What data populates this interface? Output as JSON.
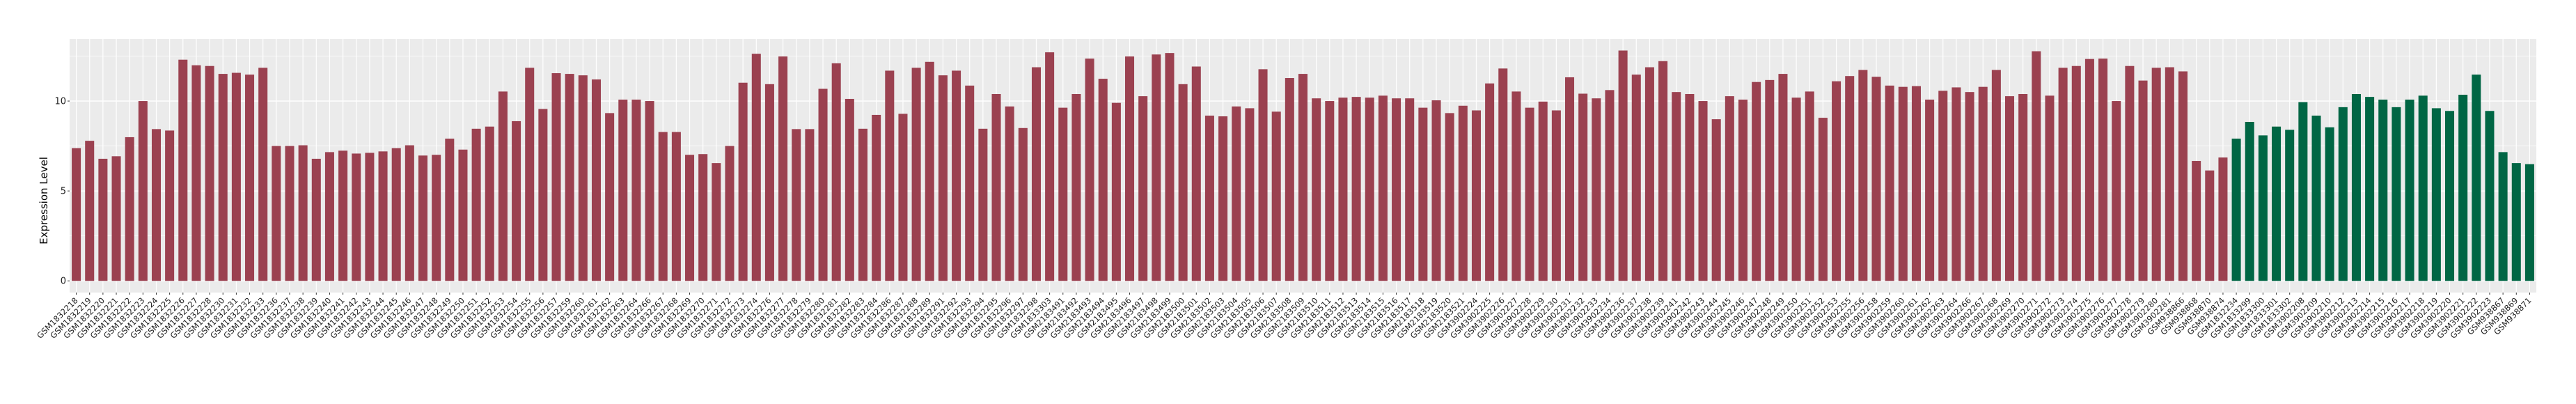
{
  "chart_data": {
    "type": "bar",
    "title": "",
    "xlabel": "",
    "ylabel": "Expression Level",
    "ylim": [
      -0.65,
      13.45
    ],
    "yticks": [
      0,
      5,
      10
    ],
    "grid": true,
    "legend": "none",
    "series": [
      {
        "color": "#9B4150",
        "categories": [
          "GSM1832218",
          "GSM1832219",
          "GSM1832220",
          "GSM1832221",
          "GSM1832222",
          "GSM1832223",
          "GSM1832224",
          "GSM1832225",
          "GSM1832226",
          "GSM1832227",
          "GSM1832228",
          "GSM1832230",
          "GSM1832231",
          "GSM1832232",
          "GSM1832233",
          "GSM1832236",
          "GSM1832237",
          "GSM1832238",
          "GSM1832239",
          "GSM1832240",
          "GSM1832241",
          "GSM1832242",
          "GSM1832243",
          "GSM1832244",
          "GSM1832245",
          "GSM1832246",
          "GSM1832247",
          "GSM1832248",
          "GSM1832249",
          "GSM1832250",
          "GSM1832251",
          "GSM1832252",
          "GSM1832253",
          "GSM1832254",
          "GSM1832255",
          "GSM1832256",
          "GSM1832257",
          "GSM1832259",
          "GSM1832260",
          "GSM1832261",
          "GSM1832262",
          "GSM1832263",
          "GSM1832264",
          "GSM1832266",
          "GSM1832267",
          "GSM1832268",
          "GSM1832269",
          "GSM1832270",
          "GSM1832271",
          "GSM1832272",
          "GSM1832273",
          "GSM1832274",
          "GSM1832276",
          "GSM1832277",
          "GSM1832278",
          "GSM1832279",
          "GSM1832280",
          "GSM1832281",
          "GSM1832282",
          "GSM1832283",
          "GSM1832284",
          "GSM1832286",
          "GSM1832287",
          "GSM1832288",
          "GSM1832289",
          "GSM1832291",
          "GSM1832292",
          "GSM1832293",
          "GSM1832294",
          "GSM1832295",
          "GSM1832296",
          "GSM1832297",
          "GSM1832298",
          "GSM1833303",
          "GSM2183491",
          "GSM2183492",
          "GSM2183493",
          "GSM2183494",
          "GSM2183495",
          "GSM2183496",
          "GSM2183497",
          "GSM2183498",
          "GSM2183499",
          "GSM2183500",
          "GSM2183501",
          "GSM2183502",
          "GSM2183503",
          "GSM2183504",
          "GSM2183505",
          "GSM2183506",
          "GSM2183507",
          "GSM2183508",
          "GSM2183509",
          "GSM2183510",
          "GSM2183511",
          "GSM2183512",
          "GSM2183513",
          "GSM2183514",
          "GSM2183515",
          "GSM2183516",
          "GSM2183517",
          "GSM2183518",
          "GSM2183519",
          "GSM2183520",
          "GSM2183521",
          "GSM3902224",
          "GSM3902225",
          "GSM3902226",
          "GSM3902227",
          "GSM3902228",
          "GSM3902229",
          "GSM3902230",
          "GSM3902231",
          "GSM3902232",
          "GSM3902233",
          "GSM3902234",
          "GSM3902236",
          "GSM3902237",
          "GSM3902238",
          "GSM3902239",
          "GSM3902241",
          "GSM3902242",
          "GSM3902243",
          "GSM3902244",
          "GSM3902245",
          "GSM3902246",
          "GSM3902247",
          "GSM3902248",
          "GSM3902249",
          "GSM3902250",
          "GSM3902251",
          "GSM3902252",
          "GSM3902253",
          "GSM3902255",
          "GSM3902256",
          "GSM3902258",
          "GSM3902259",
          "GSM3902260",
          "GSM3902261",
          "GSM3902262",
          "GSM3902263",
          "GSM3902264",
          "GSM3902266",
          "GSM3902267",
          "GSM3902268",
          "GSM3902269",
          "GSM3902270",
          "GSM3902271",
          "GSM3902272",
          "GSM3902273",
          "GSM3902274",
          "GSM3902275",
          "GSM3902276",
          "GSM3902277",
          "GSM3902278",
          "GSM3902279",
          "GSM3902280",
          "GSM3902281",
          "GSM938866",
          "GSM938868",
          "GSM938870",
          "GSM938874"
        ],
        "values": [
          7.38,
          7.79,
          6.79,
          6.93,
          7.99,
          10.0,
          8.44,
          8.36,
          12.3,
          11.99,
          11.95,
          11.51,
          11.57,
          11.47,
          11.85,
          7.5,
          7.5,
          7.54,
          6.79,
          7.16,
          7.24,
          7.08,
          7.12,
          7.2,
          7.38,
          7.54,
          6.97,
          7.01,
          7.91,
          7.3,
          8.46,
          8.58,
          10.53,
          8.88,
          11.85,
          9.56,
          11.55,
          11.51,
          11.43,
          11.2,
          9.33,
          10.08,
          10.08,
          10.0,
          8.28,
          8.28,
          7.01,
          7.05,
          6.55,
          7.5,
          11.02,
          12.63,
          10.94,
          12.48,
          8.44,
          8.44,
          10.68,
          12.1,
          10.12,
          8.46,
          9.23,
          11.69,
          9.29,
          11.85,
          12.18,
          11.43,
          11.69,
          10.86,
          8.46,
          10.39,
          9.7,
          8.5,
          11.88,
          12.71,
          9.63,
          10.39,
          12.36,
          11.24,
          9.9,
          12.48,
          10.27,
          12.59,
          12.67,
          10.94,
          11.92,
          9.19,
          9.15,
          9.7,
          9.6,
          11.77,
          9.41,
          11.28,
          11.51,
          10.15,
          10.0,
          10.19,
          10.23,
          10.19,
          10.3,
          10.15,
          10.15,
          9.63,
          10.04,
          9.33,
          9.74,
          9.48,
          10.98,
          11.81,
          10.53,
          9.63,
          9.97,
          9.48,
          11.32,
          10.41,
          10.15,
          10.61,
          12.81,
          11.47,
          11.88,
          12.22,
          10.5,
          10.39,
          10.0,
          8.99,
          10.27,
          10.08,
          11.06,
          11.17,
          11.51,
          10.19,
          10.53,
          9.07,
          11.1,
          11.39,
          11.73,
          11.35,
          10.86,
          10.79,
          10.83,
          10.08,
          10.57,
          10.76,
          10.5,
          10.79,
          11.73,
          10.27,
          10.39,
          12.77,
          10.3,
          11.85,
          11.95,
          12.34,
          12.36,
          10.0,
          11.95,
          11.14,
          11.85,
          11.88,
          11.65,
          6.67,
          6.14,
          6.86
        ]
      },
      {
        "color": "#006644",
        "categories": [
          "GSM1832234",
          "GSM1833299",
          "GSM1833300",
          "GSM1833301",
          "GSM1833302",
          "GSM3902208",
          "GSM3902209",
          "GSM3902210",
          "GSM3902212",
          "GSM3902213",
          "GSM3902214",
          "GSM3902215",
          "GSM3902216",
          "GSM3902217",
          "GSM3902218",
          "GSM3902219",
          "GSM3902220",
          "GSM3902221",
          "GSM3902222",
          "GSM3902223",
          "GSM938867",
          "GSM938869",
          "GSM938871"
        ],
        "values": [
          7.91,
          8.84,
          8.09,
          8.58,
          8.4,
          9.94,
          9.19,
          8.54,
          9.66,
          10.39,
          10.23,
          10.08,
          9.66,
          10.08,
          10.3,
          9.6,
          9.45,
          10.35,
          11.47,
          9.45,
          7.16,
          6.55,
          6.49
        ]
      }
    ]
  }
}
